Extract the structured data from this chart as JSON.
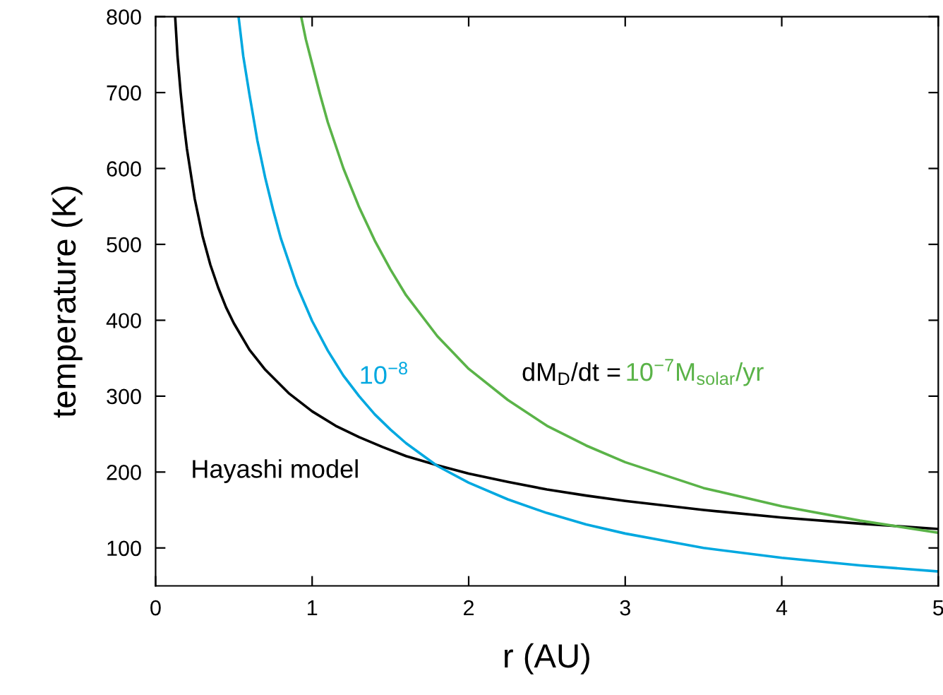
{
  "chart_data": {
    "type": "line",
    "xlabel": "r (AU)",
    "ylabel": "temperature (K)",
    "xlim": [
      0,
      5
    ],
    "xticks": [
      0,
      1,
      2,
      3,
      4,
      5
    ],
    "ylim": [
      50,
      800
    ],
    "yticks": [
      100,
      200,
      300,
      400,
      500,
      600,
      700,
      800
    ],
    "grid": false,
    "legend": false,
    "series": [
      {
        "name": "Hayashi model",
        "color": "#000000",
        "x": [
          0.125,
          0.14,
          0.16,
          0.18,
          0.2,
          0.25,
          0.3,
          0.35,
          0.4,
          0.45,
          0.5,
          0.6,
          0.7,
          0.85,
          1,
          1.15,
          1.3,
          1.45,
          1.6,
          1.8,
          2,
          2.25,
          2.5,
          2.75,
          3,
          3.5,
          4,
          4.5,
          5
        ],
        "values": [
          800,
          748,
          700,
          660,
          626,
          560,
          511,
          473,
          443,
          417,
          396,
          361,
          335,
          304,
          280,
          261,
          246,
          233,
          221,
          209,
          198,
          187,
          177,
          169,
          162,
          150,
          140,
          132,
          125
        ]
      },
      {
        "name": "10$^{−8}$",
        "color": "#00a8e0",
        "x": [
          0.53,
          0.56,
          0.6,
          0.65,
          0.7,
          0.75,
          0.8,
          0.9,
          1,
          1.1,
          1.2,
          1.3,
          1.4,
          1.5,
          1.6,
          1.8,
          2,
          2.25,
          2.5,
          2.75,
          3,
          3.5,
          4,
          4.5,
          5
        ],
        "values": [
          800,
          748,
          697,
          637,
          588,
          546,
          508,
          447,
          399,
          360,
          327,
          300,
          276,
          256,
          238,
          208,
          186,
          164,
          146,
          131,
          119,
          100,
          87,
          77,
          69
        ]
      },
      {
        "name": "10$^{−7}$M$_{solar}$/yr",
        "color": "#5ab348",
        "x": [
          0.93,
          0.96,
          1,
          1.05,
          1.1,
          1.2,
          1.3,
          1.4,
          1.5,
          1.6,
          1.8,
          2,
          2.25,
          2.5,
          2.75,
          3,
          3.5,
          4,
          4.5,
          5
        ],
        "values": [
          800,
          770,
          738,
          698,
          661,
          600,
          549,
          505,
          467,
          433,
          379,
          336,
          295,
          261,
          235,
          213,
          179,
          155,
          136,
          120
        ]
      }
    ],
    "annotations": [
      "dM$_{D}$/dt ="
    ]
  }
}
